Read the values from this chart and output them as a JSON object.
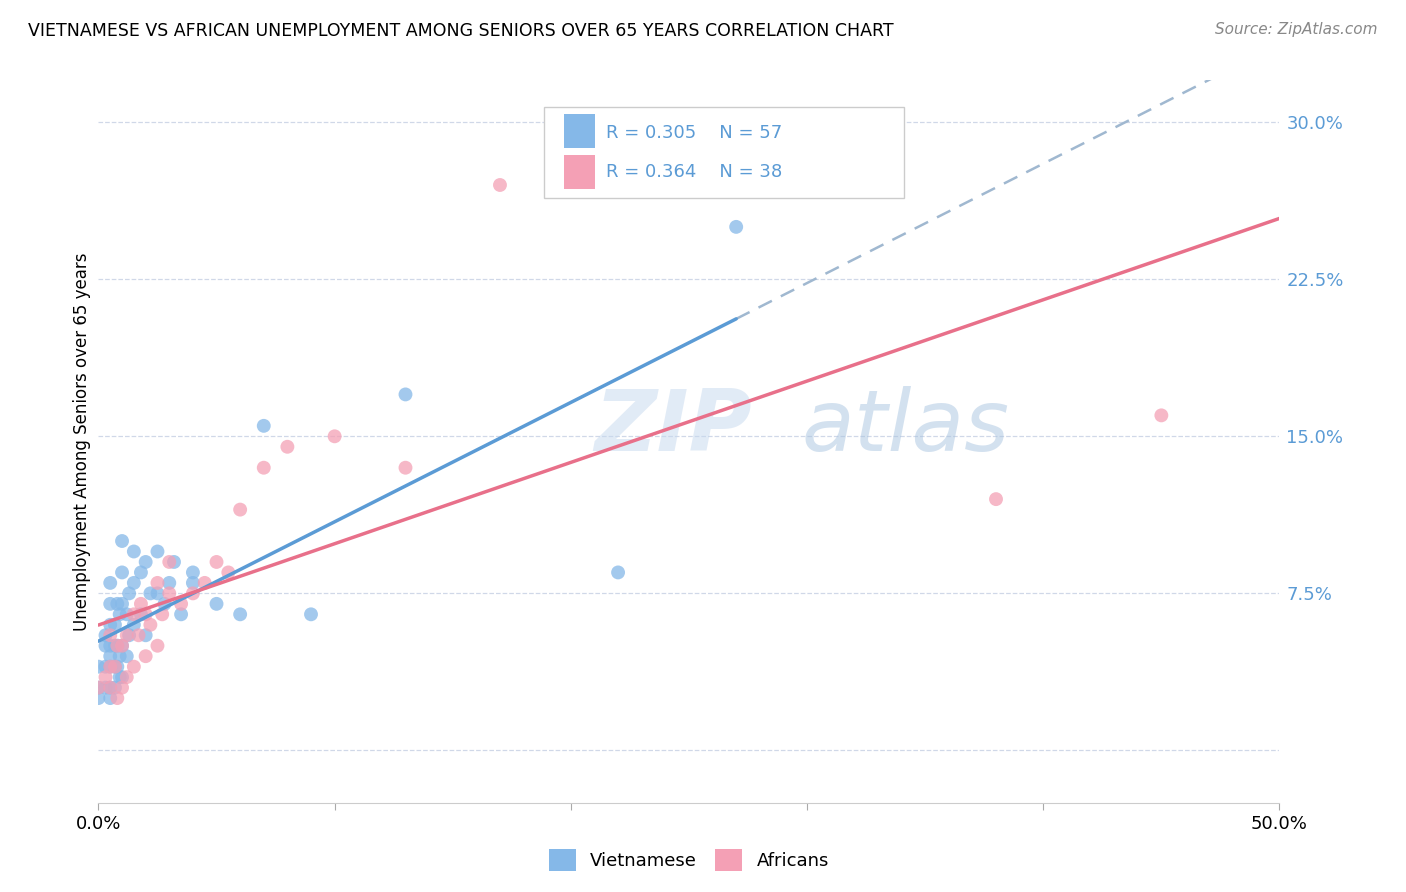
{
  "title": "VIETNAMESE VS AFRICAN UNEMPLOYMENT AMONG SENIORS OVER 65 YEARS CORRELATION CHART",
  "source": "Source: ZipAtlas.com",
  "ylabel": "Unemployment Among Seniors over 65 years",
  "xlim": [
    0.0,
    0.5
  ],
  "ylim": [
    -0.025,
    0.32
  ],
  "xticks": [
    0.0,
    0.1,
    0.2,
    0.3,
    0.4,
    0.5
  ],
  "yticks_right": [
    0.0,
    0.075,
    0.15,
    0.225,
    0.3
  ],
  "ytick_labels_right": [
    "",
    "7.5%",
    "15.0%",
    "22.5%",
    "30.0%"
  ],
  "xtick_labels": [
    "0.0%",
    "",
    "",
    "",
    "",
    "50.0%"
  ],
  "watermark": "ZIPatlas",
  "legend_r1": "0.305",
  "legend_n1": "57",
  "legend_r2": "0.364",
  "legend_n2": "38",
  "viet_color": "#85B8E8",
  "african_color": "#F4A0B5",
  "viet_line_color": "#5B9BD5",
  "african_line_color": "#E8708A",
  "background_color": "#FFFFFF",
  "grid_color": "#D0D8E8",
  "viet_scatter_x": [
    0.0,
    0.0,
    0.0,
    0.003,
    0.003,
    0.003,
    0.003,
    0.005,
    0.005,
    0.005,
    0.005,
    0.005,
    0.005,
    0.005,
    0.005,
    0.007,
    0.007,
    0.007,
    0.007,
    0.008,
    0.008,
    0.008,
    0.009,
    0.009,
    0.009,
    0.01,
    0.01,
    0.01,
    0.01,
    0.01,
    0.012,
    0.012,
    0.013,
    0.013,
    0.015,
    0.015,
    0.015,
    0.018,
    0.018,
    0.02,
    0.02,
    0.022,
    0.025,
    0.025,
    0.028,
    0.03,
    0.032,
    0.035,
    0.04,
    0.04,
    0.05,
    0.06,
    0.07,
    0.09,
    0.13,
    0.22,
    0.27
  ],
  "viet_scatter_y": [
    0.025,
    0.03,
    0.04,
    0.03,
    0.04,
    0.05,
    0.055,
    0.025,
    0.03,
    0.04,
    0.045,
    0.05,
    0.06,
    0.07,
    0.08,
    0.03,
    0.04,
    0.05,
    0.06,
    0.04,
    0.05,
    0.07,
    0.035,
    0.045,
    0.065,
    0.035,
    0.05,
    0.07,
    0.085,
    0.1,
    0.045,
    0.065,
    0.055,
    0.075,
    0.06,
    0.08,
    0.095,
    0.065,
    0.085,
    0.055,
    0.09,
    0.075,
    0.075,
    0.095,
    0.07,
    0.08,
    0.09,
    0.065,
    0.08,
    0.085,
    0.07,
    0.065,
    0.155,
    0.065,
    0.17,
    0.085,
    0.25
  ],
  "african_scatter_x": [
    0.0,
    0.003,
    0.005,
    0.005,
    0.005,
    0.007,
    0.008,
    0.008,
    0.01,
    0.01,
    0.012,
    0.012,
    0.015,
    0.015,
    0.017,
    0.018,
    0.02,
    0.02,
    0.022,
    0.025,
    0.025,
    0.027,
    0.03,
    0.03,
    0.035,
    0.04,
    0.045,
    0.05,
    0.055,
    0.06,
    0.07,
    0.08,
    0.1,
    0.13,
    0.17,
    0.2,
    0.38,
    0.45
  ],
  "african_scatter_y": [
    0.03,
    0.035,
    0.03,
    0.04,
    0.055,
    0.04,
    0.025,
    0.05,
    0.03,
    0.05,
    0.035,
    0.055,
    0.04,
    0.065,
    0.055,
    0.07,
    0.045,
    0.065,
    0.06,
    0.05,
    0.08,
    0.065,
    0.075,
    0.09,
    0.07,
    0.075,
    0.08,
    0.09,
    0.085,
    0.115,
    0.135,
    0.145,
    0.15,
    0.135,
    0.27,
    0.27,
    0.12,
    0.16
  ],
  "viet_line_x_end": 0.27,
  "dashed_line_color": "#A0B8D0"
}
